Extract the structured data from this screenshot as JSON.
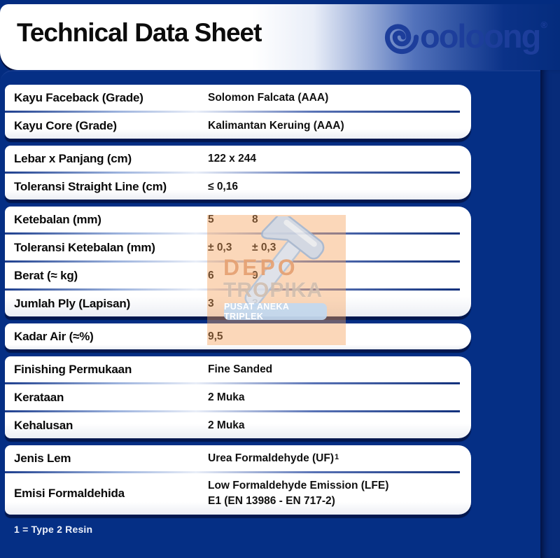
{
  "header": {
    "title": "Technical Data Sheet",
    "brand": "Gooloong",
    "wordmark_tail": "ooloong",
    "registered": "®"
  },
  "table": {
    "sections": [
      {
        "rows": [
          {
            "label": "Kayu Faceback (Grade)",
            "values": [
              "Solomon Falcata (AAA)"
            ]
          },
          {
            "label": "Kayu Core (Grade)",
            "values": [
              "Kalimantan Keruing (AAA)"
            ]
          }
        ]
      },
      {
        "rows": [
          {
            "label": "Lebar x Panjang (cm)",
            "values": [
              "122 x 244"
            ]
          },
          {
            "label": "Toleransi Straight Line (cm)",
            "values": [
              "≤ 0,16"
            ]
          }
        ]
      },
      {
        "rows": [
          {
            "label": "Ketebalan (mm)",
            "values": [
              "5",
              "8"
            ],
            "columns": true
          },
          {
            "label": "Toleransi Ketebalan (mm)",
            "values": [
              "± 0,3",
              "± 0,3"
            ],
            "columns": true
          },
          {
            "label": "Berat (≈ kg)",
            "values": [
              "6",
              "9"
            ],
            "columns": true
          },
          {
            "label": "Jumlah Ply (Lapisan)",
            "values": [
              "3",
              "3"
            ],
            "columns": true
          }
        ]
      },
      {
        "rows": [
          {
            "label": "Kadar Air (≈%)",
            "values": [
              "9,5"
            ]
          }
        ]
      },
      {
        "rows": [
          {
            "label": "Finishing Permukaan",
            "values": [
              "Fine Sanded"
            ]
          },
          {
            "label": "Kerataan",
            "values": [
              "2 Muka"
            ]
          },
          {
            "label": "Kehalusan",
            "values": [
              "2 Muka"
            ]
          }
        ]
      },
      {
        "rows": [
          {
            "label": "Jenis Lem",
            "values": [
              "Urea Formaldehyde (UF)"
            ],
            "superscript": "1"
          },
          {
            "label": "Emisi Formaldehida",
            "values": [
              "Low Formaldehyde Emission (LFE)",
              "E1 (EN 13986 - EN 717-2)"
            ],
            "multiline": true
          }
        ]
      }
    ]
  },
  "footnote": "1 = Type 2 Resin",
  "watermark": {
    "line1": "DEPO",
    "line2": "TROPIKA",
    "banner": "PUSAT ANEKA TRIPLEK"
  },
  "colors": {
    "navy_background": "#032c80",
    "logo_blue": "#1d3e9b",
    "watermark_orange": "#f6a058",
    "watermark_banner_blue": "#c1d8f0",
    "card_white": "#ffffff"
  }
}
